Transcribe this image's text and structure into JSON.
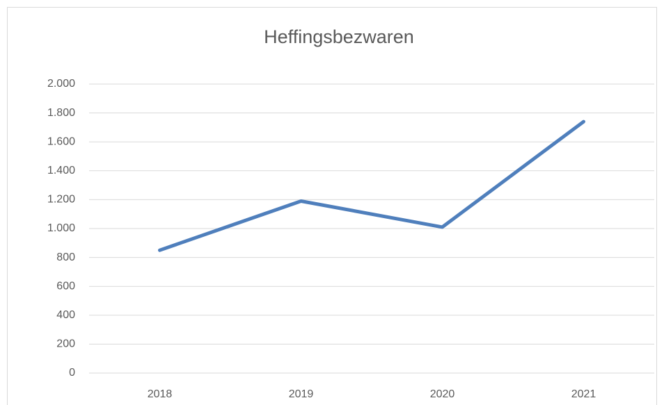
{
  "chart_data": {
    "type": "line",
    "title": "Heffingsbezwaren",
    "categories": [
      "2018",
      "2019",
      "2020",
      "2021"
    ],
    "series": [
      {
        "name": "Heffingsbezwaren",
        "color": "#4f7fbc",
        "values": [
          850,
          1190,
          1010,
          1740
        ]
      }
    ],
    "ylim": [
      0,
      2000
    ],
    "yticks": [
      0,
      200,
      400,
      600,
      800,
      {
        "value": 1000,
        "label": "1.000"
      },
      {
        "value": 1200,
        "label": "1.200"
      },
      {
        "value": 1400,
        "label": "1.400"
      },
      {
        "value": 1600,
        "label": "1.600"
      },
      {
        "value": 1800,
        "label": "1.800"
      },
      {
        "value": 2000,
        "label": "2.000"
      }
    ],
    "grid": true
  }
}
